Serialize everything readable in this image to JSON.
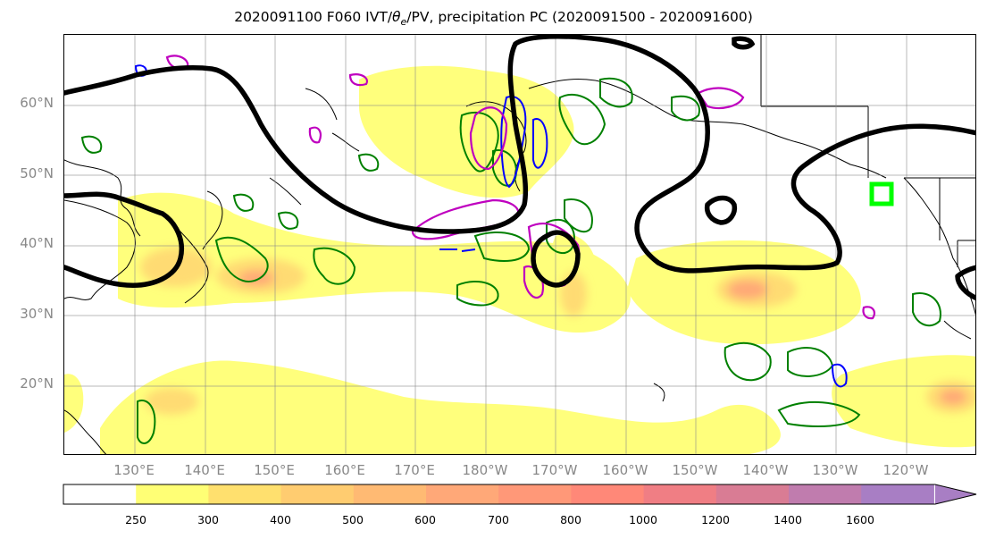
{
  "title": {
    "prefix": "2020091100 F060 IVT/",
    "theta": "θ",
    "theta_sub": "e",
    "suffix": "/PV, precipitation PC (2020091500 - 2020091600)"
  },
  "map": {
    "projection": "PlateCarree",
    "lon_range": [
      120,
      246
    ],
    "lat_range": [
      10,
      70
    ],
    "gridlines": true,
    "lat_labels": [
      "60°N",
      "50°N",
      "40°N",
      "30°N",
      "20°N"
    ],
    "lon_labels": [
      "130°E",
      "140°E",
      "150°E",
      "160°E",
      "170°E",
      "180°W",
      "170°W",
      "160°W",
      "150°W",
      "140°W",
      "130°W",
      "120°W"
    ],
    "colors": {
      "ivt_fill": "#ffff66",
      "theta_e": "#000000",
      "pv_positive": "#008000",
      "pv_negative": "#0000ff",
      "pv_high": "#bf00bf",
      "target_box": "#00ff00"
    }
  },
  "colorbar": {
    "levels": [
      "250",
      "300",
      "400",
      "500",
      "600",
      "700",
      "800",
      "1000",
      "1200",
      "1400",
      "1600"
    ],
    "colors": [
      "#ffff75",
      "#ffe06e",
      "#ffcc70",
      "#ffba73",
      "#ffa878",
      "#ff9878",
      "#ff8878",
      "#f07e84",
      "#d97c94",
      "#c07cae",
      "#a87ec4"
    ],
    "extend": "max"
  }
}
